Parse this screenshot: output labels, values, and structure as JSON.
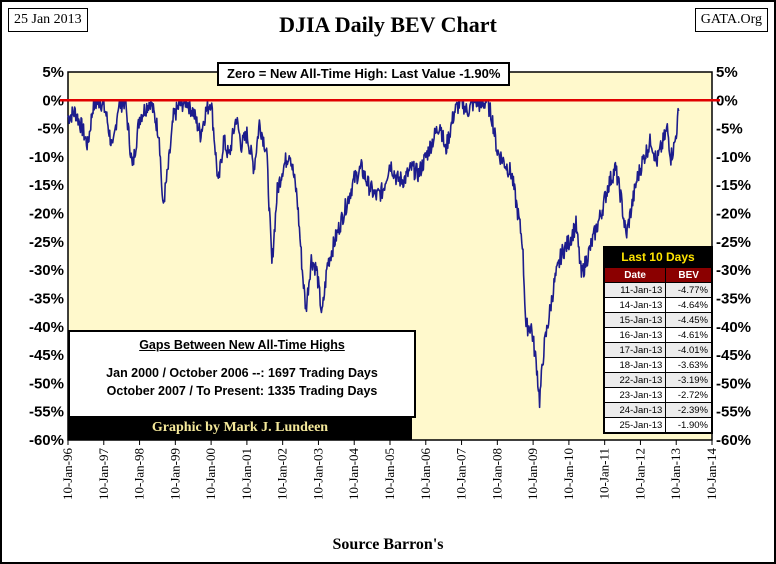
{
  "header": {
    "date": "25 Jan 2013",
    "source_site": "GATA.Org",
    "title": "DJIA Daily BEV Chart"
  },
  "annotation": "Zero = New All-Time High: Last Value  -1.90%",
  "gaps_box": {
    "title": "Gaps Between New All-Time Highs",
    "line1": "Jan 2000 / October 2006 --:  1697 Trading Days",
    "line2": "October 2007 / To Present:  1335 Trading Days"
  },
  "credit": "Graphic by Mark J. Lundeen",
  "footer": "Source Barron's",
  "last10": {
    "title": "Last 10 Days",
    "headers": [
      "Date",
      "BEV"
    ],
    "rows": [
      [
        "11-Jan-13",
        "-4.77%"
      ],
      [
        "14-Jan-13",
        "-4.64%"
      ],
      [
        "15-Jan-13",
        "-4.45%"
      ],
      [
        "16-Jan-13",
        "-4.61%"
      ],
      [
        "17-Jan-13",
        "-4.01%"
      ],
      [
        "18-Jan-13",
        "-3.63%"
      ],
      [
        "22-Jan-13",
        "-3.19%"
      ],
      [
        "23-Jan-13",
        "-2.72%"
      ],
      [
        "24-Jan-13",
        "-2.39%"
      ],
      [
        "25-Jan-13",
        "-1.90%"
      ]
    ]
  },
  "chart_data": {
    "type": "line",
    "title": "DJIA Daily BEV Chart",
    "xlabel": "Source Barron's",
    "ylabel": "",
    "ylim": [
      -60,
      5
    ],
    "yticks": [
      "5%",
      "0%",
      "-5%",
      "-10%",
      "-15%",
      "-20%",
      "-25%",
      "-30%",
      "-35%",
      "-40%",
      "-45%",
      "-50%",
      "-55%",
      "-60%"
    ],
    "ytick_values": [
      5,
      0,
      -5,
      -10,
      -15,
      -20,
      -25,
      -30,
      -35,
      -40,
      -45,
      -50,
      -55,
      -60
    ],
    "xticks": [
      "10-Jan-96",
      "10-Jan-97",
      "10-Jan-98",
      "10-Jan-99",
      "10-Jan-00",
      "10-Jan-01",
      "10-Jan-02",
      "10-Jan-03",
      "10-Jan-04",
      "10-Jan-05",
      "10-Jan-06",
      "10-Jan-07",
      "10-Jan-08",
      "10-Jan-09",
      "10-Jan-10",
      "10-Jan-11",
      "10-Jan-12",
      "10-Jan-13",
      "10-Jan-14"
    ],
    "xlim": [
      1996.0,
      2014.0
    ],
    "reference_line": {
      "y": 0,
      "color": "#e00000"
    },
    "line_color": "#1c1c8c",
    "plot_bg": "#fff9cc",
    "grid": false,
    "series": [
      {
        "values": [
          [
            1996.0,
            -3
          ],
          [
            1996.2,
            -2
          ],
          [
            1996.4,
            -5
          ],
          [
            1996.55,
            -8
          ],
          [
            1996.7,
            -1
          ],
          [
            1996.9,
            0
          ],
          [
            1997.05,
            -2
          ],
          [
            1997.25,
            -9
          ],
          [
            1997.4,
            -1
          ],
          [
            1997.6,
            0
          ],
          [
            1997.8,
            -12
          ],
          [
            1998.0,
            -3
          ],
          [
            1998.3,
            0
          ],
          [
            1998.55,
            -6
          ],
          [
            1998.65,
            -19
          ],
          [
            1998.8,
            -12
          ],
          [
            1998.95,
            -3
          ],
          [
            1999.1,
            -1
          ],
          [
            1999.3,
            0
          ],
          [
            1999.5,
            -2
          ],
          [
            1999.7,
            -6
          ],
          [
            1999.85,
            -2
          ],
          [
            2000.0,
            0
          ],
          [
            2000.2,
            -15
          ],
          [
            2000.35,
            -7
          ],
          [
            2000.5,
            -10
          ],
          [
            2000.7,
            -3
          ],
          [
            2000.85,
            -8
          ],
          [
            2001.0,
            -6
          ],
          [
            2001.2,
            -12
          ],
          [
            2001.35,
            -4
          ],
          [
            2001.55,
            -9
          ],
          [
            2001.7,
            -29
          ],
          [
            2001.85,
            -16
          ],
          [
            2002.0,
            -12
          ],
          [
            2002.2,
            -9
          ],
          [
            2002.4,
            -17
          ],
          [
            2002.55,
            -30
          ],
          [
            2002.65,
            -37
          ],
          [
            2002.8,
            -28
          ],
          [
            2002.95,
            -30
          ],
          [
            2003.1,
            -38
          ],
          [
            2003.25,
            -29
          ],
          [
            2003.4,
            -26
          ],
          [
            2003.6,
            -22
          ],
          [
            2003.8,
            -18
          ],
          [
            2004.0,
            -14
          ],
          [
            2004.2,
            -12
          ],
          [
            2004.4,
            -15
          ],
          [
            2004.6,
            -17
          ],
          [
            2004.8,
            -16
          ],
          [
            2005.0,
            -11
          ],
          [
            2005.2,
            -14
          ],
          [
            2005.4,
            -14
          ],
          [
            2005.6,
            -12
          ],
          [
            2005.8,
            -13
          ],
          [
            2006.0,
            -10
          ],
          [
            2006.2,
            -7
          ],
          [
            2006.4,
            -4
          ],
          [
            2006.55,
            -9
          ],
          [
            2006.8,
            -2
          ],
          [
            2007.0,
            0
          ],
          [
            2007.15,
            -2
          ],
          [
            2007.4,
            0
          ],
          [
            2007.55,
            -1
          ],
          [
            2007.7,
            0
          ],
          [
            2007.85,
            -3
          ],
          [
            2008.0,
            -9
          ],
          [
            2008.2,
            -11
          ],
          [
            2008.4,
            -13
          ],
          [
            2008.55,
            -19
          ],
          [
            2008.7,
            -25
          ],
          [
            2008.8,
            -40
          ],
          [
            2008.95,
            -40
          ],
          [
            2009.1,
            -47
          ],
          [
            2009.18,
            -53
          ],
          [
            2009.3,
            -44
          ],
          [
            2009.45,
            -38
          ],
          [
            2009.6,
            -32
          ],
          [
            2009.8,
            -27
          ],
          [
            2010.0,
            -25
          ],
          [
            2010.2,
            -22
          ],
          [
            2010.35,
            -31
          ],
          [
            2010.55,
            -27
          ],
          [
            2010.7,
            -24
          ],
          [
            2010.9,
            -20
          ],
          [
            2011.1,
            -15
          ],
          [
            2011.3,
            -12
          ],
          [
            2011.45,
            -17
          ],
          [
            2011.6,
            -24
          ],
          [
            2011.75,
            -19
          ],
          [
            2011.9,
            -14
          ],
          [
            2012.1,
            -10
          ],
          [
            2012.3,
            -7
          ],
          [
            2012.45,
            -11
          ],
          [
            2012.6,
            -8
          ],
          [
            2012.75,
            -5
          ],
          [
            2012.85,
            -10
          ],
          [
            2012.95,
            -8
          ],
          [
            2013.02,
            -4.77
          ],
          [
            2013.07,
            -1.9
          ]
        ]
      }
    ]
  }
}
